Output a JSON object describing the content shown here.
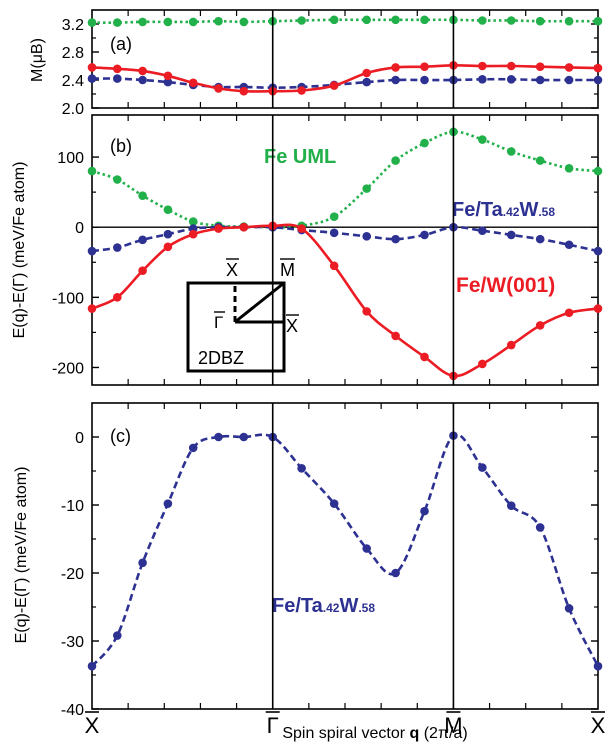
{
  "colors": {
    "green": "#22b04a",
    "blue": "#2d3191",
    "red": "#ec1c24",
    "axis": "#000000"
  },
  "xaxis": {
    "label_prefix": "Spin spiral vector ",
    "label_bold": "q",
    "label_suffix": " (2π/a)",
    "ticks": [
      {
        "x": 0,
        "label": "X",
        "bar": true
      },
      {
        "x": 5,
        "label": "Γ",
        "bar": true
      },
      {
        "x": 10,
        "label": "M",
        "bar": true
      },
      {
        "x": 14,
        "label": "X",
        "bar": true
      }
    ]
  },
  "chart_data": [
    {
      "type": "line",
      "panel_label": "(a)",
      "ylabel": "M(μB)",
      "ylim": [
        2.0,
        3.4
      ],
      "yticks": [
        "2.0",
        "2.4",
        "2.8",
        "3.2"
      ],
      "xlim": [
        0,
        14
      ],
      "series": [
        {
          "style": "dotted",
          "color": "green",
          "x": [
            0,
            0.7,
            1.4,
            2.1,
            2.8,
            3.5,
            4.2,
            5,
            5.8,
            6.7,
            7.6,
            8.4,
            9.2,
            10,
            10.8,
            11.6,
            12.4,
            13.2,
            14
          ],
          "y": [
            3.22,
            3.22,
            3.23,
            3.23,
            3.23,
            3.24,
            3.23,
            3.24,
            3.25,
            3.26,
            3.26,
            3.26,
            3.26,
            3.26,
            3.25,
            3.25,
            3.24,
            3.24,
            3.24
          ]
        },
        {
          "style": "dashed",
          "color": "blue",
          "x": [
            0,
            0.7,
            1.4,
            2.1,
            2.8,
            3.5,
            4.2,
            5,
            5.8,
            6.7,
            7.6,
            8.4,
            9.2,
            10,
            10.8,
            11.6,
            12.4,
            13.2,
            14
          ],
          "y": [
            2.42,
            2.42,
            2.4,
            2.37,
            2.33,
            2.3,
            2.3,
            2.29,
            2.3,
            2.33,
            2.37,
            2.4,
            2.4,
            2.4,
            2.41,
            2.41,
            2.4,
            2.4,
            2.4
          ]
        },
        {
          "style": "solid",
          "color": "red",
          "x": [
            0,
            0.7,
            1.4,
            2.1,
            2.8,
            3.5,
            4.2,
            5,
            5.8,
            6.7,
            7.6,
            8.4,
            9.2,
            10,
            10.8,
            11.6,
            12.4,
            13.2,
            14
          ],
          "y": [
            2.58,
            2.56,
            2.53,
            2.46,
            2.36,
            2.28,
            2.24,
            2.24,
            2.25,
            2.32,
            2.5,
            2.58,
            2.59,
            2.61,
            2.6,
            2.6,
            2.59,
            2.58,
            2.57
          ]
        }
      ]
    },
    {
      "type": "line",
      "panel_label": "(b)",
      "ylim": [
        -225,
        160
      ],
      "yticks": [
        "-200",
        "-100",
        "0",
        "100"
      ],
      "xlim": [
        0,
        14
      ],
      "series": [
        {
          "name": "Fe UML",
          "style": "dotted",
          "color": "green",
          "x": [
            0,
            0.7,
            1.4,
            2.1,
            2.8,
            3.5,
            4.2,
            5,
            5.8,
            6.7,
            7.6,
            8.4,
            9.2,
            10,
            10.8,
            11.6,
            12.4,
            13.2,
            14
          ],
          "y": [
            80,
            68,
            45,
            25,
            8,
            2,
            1,
            0,
            2,
            15,
            55,
            95,
            120,
            136,
            125,
            108,
            95,
            84,
            80
          ]
        },
        {
          "name": "Fe/Ta.42W.58",
          "style": "dashed",
          "color": "blue",
          "x": [
            0,
            0.7,
            1.4,
            2.1,
            2.8,
            3.5,
            4.2,
            5,
            5.8,
            6.7,
            7.6,
            8.4,
            9.2,
            10,
            10.8,
            11.6,
            12.4,
            13.2,
            14
          ],
          "y": [
            -34,
            -29,
            -18,
            -10,
            -2,
            0,
            0,
            0,
            -4,
            -8,
            -13,
            -17,
            -11,
            0,
            -5,
            -11,
            -17,
            -25,
            -34
          ]
        },
        {
          "name": "Fe/W(001)",
          "style": "solid",
          "color": "red",
          "x": [
            0,
            0.7,
            1.4,
            2.1,
            2.8,
            3.5,
            4.2,
            5,
            5.8,
            6.7,
            7.6,
            8.4,
            9.2,
            10,
            10.8,
            11.6,
            12.4,
            13.2,
            14
          ],
          "y": [
            -116,
            -100,
            -62,
            -28,
            -10,
            -2,
            0,
            2,
            -2,
            -55,
            -120,
            -155,
            -185,
            -212,
            -195,
            -168,
            -140,
            -122,
            -116
          ]
        }
      ]
    },
    {
      "type": "line",
      "panel_label": "(c)",
      "ylim": [
        -40,
        5
      ],
      "yticks": [
        "-40",
        "-30",
        "-20",
        "-10",
        "0"
      ],
      "xlim": [
        0,
        14
      ],
      "series": [
        {
          "name": "Fe/Ta.42W.58",
          "style": "dashed",
          "color": "blue",
          "x": [
            0,
            0.7,
            1.4,
            2.1,
            2.8,
            3.5,
            4.2,
            5,
            5.8,
            6.7,
            7.6,
            8.4,
            9.2,
            10,
            10.8,
            11.6,
            12.4,
            13.2,
            14
          ],
          "y": [
            -33.7,
            -29.2,
            -18.5,
            -9.8,
            -1.6,
            0,
            0,
            0,
            -4.6,
            -9.8,
            -16.4,
            -20,
            -10.9,
            0.2,
            -4.5,
            -10.1,
            -13.3,
            -25.2,
            -33.7
          ]
        }
      ]
    }
  ],
  "labels": {
    "b_ylabel": "E(q)-E(Γ) (meV/Fe atom)",
    "c_ylabel": "E(q)-E(Γ) (meV/Fe atom)",
    "fe_uml": "Fe UML",
    "fe_w": "Fe/W(001)",
    "fe_ta_b": {
      "a": "Fe/Ta",
      "b": ".42",
      "c": "W",
      "d": ".58"
    },
    "fe_ta_c": {
      "a": "Fe/Ta",
      "b": ".42",
      "c": "W",
      "d": ".58"
    },
    "bz": {
      "title": "2DBZ",
      "x_top": "X",
      "m": "M",
      "gamma": "Γ",
      "x_right": "X"
    }
  }
}
